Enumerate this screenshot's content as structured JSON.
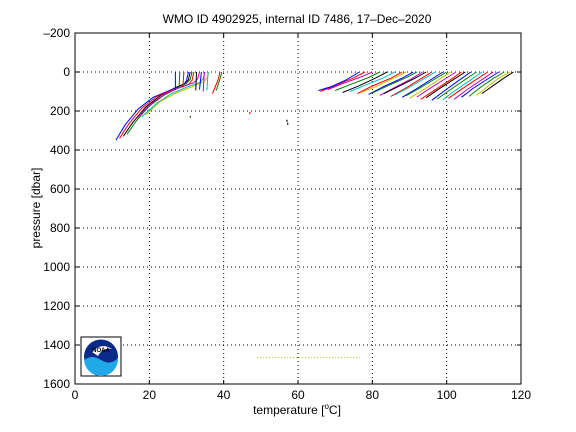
{
  "chart_data": {
    "type": "line",
    "title": "WMO ID 4902925, internal ID 7486, 17–Dec–2020",
    "xlabel_prefix": "temperature [",
    "xlabel_degree": "o",
    "xlabel_suffix": "C]",
    "ylabel": "pressure [dbar]",
    "xlim": [
      0,
      120
    ],
    "ylim": [
      -200,
      1600
    ],
    "y_reversed": true,
    "grid": true,
    "grid_style": "dotted",
    "x_ticks": [
      {
        "value": 0,
        "label": "0"
      },
      {
        "value": 20,
        "label": "20"
      },
      {
        "value": 40,
        "label": "40"
      },
      {
        "value": 60,
        "label": "60"
      },
      {
        "value": 80,
        "label": "80"
      },
      {
        "value": 100,
        "label": "100"
      },
      {
        "value": 120,
        "label": "120"
      }
    ],
    "y_ticks": [
      {
        "value": -200,
        "label": "–200"
      },
      {
        "value": 0,
        "label": "0"
      },
      {
        "value": 200,
        "label": "200"
      },
      {
        "value": 400,
        "label": "400"
      },
      {
        "value": 600,
        "label": "600"
      },
      {
        "value": 800,
        "label": "800"
      },
      {
        "value": 1000,
        "label": "1000"
      },
      {
        "value": 1200,
        "label": "1200"
      },
      {
        "value": 1400,
        "label": "1400"
      },
      {
        "value": 1600,
        "label": "1600"
      }
    ],
    "colors": [
      "#0000ff",
      "#008000",
      "#ff0000",
      "#00bfbf",
      "#bf00bf",
      "#bfbf00",
      "#000000"
    ],
    "series": [
      {
        "color": "#000000",
        "x": [
          13.0,
          15.5,
          19.0,
          23.0,
          27.0,
          29.5,
          30.5,
          31.0
        ],
        "y": [
          330,
          260,
          180,
          120,
          80,
          60,
          40,
          0
        ]
      },
      {
        "color": "#0000ff",
        "x": [
          11.0,
          13.5,
          17.0,
          21.0,
          26.0,
          29.0,
          30.0,
          30.5
        ],
        "y": [
          350,
          270,
          190,
          130,
          90,
          70,
          45,
          0
        ]
      },
      {
        "color": "#ff0000",
        "x": [
          12.0,
          14.5,
          18.0,
          22.0,
          27.0,
          30.5,
          31.5,
          32.0
        ],
        "y": [
          340,
          265,
          185,
          125,
          85,
          65,
          42,
          0
        ]
      },
      {
        "color": "#008000",
        "x": [
          14.0,
          16.5,
          20.0,
          24.0,
          28.0,
          30.0,
          31.0,
          31.5
        ],
        "y": [
          320,
          250,
          175,
          118,
          80,
          58,
          38,
          0
        ]
      },
      {
        "color": "#bf00bf",
        "x": [
          16.5,
          20.0,
          24.0,
          28.0,
          32.0,
          33.0,
          33.5
        ],
        "y": [
          240,
          170,
          115,
          80,
          55,
          35,
          0
        ]
      },
      {
        "color": "#00bfbf",
        "x": [
          18.0,
          22.0,
          26.0,
          30.0,
          33.5,
          34.5,
          35.0
        ],
        "y": [
          230,
          160,
          110,
          78,
          55,
          35,
          0
        ]
      },
      {
        "color": "#bfbf00",
        "x": [
          19.0,
          23.0,
          27.5,
          31.5,
          34.5,
          35.5,
          36.0
        ],
        "y": [
          220,
          150,
          105,
          75,
          52,
          33,
          0
        ]
      },
      {
        "color": "#0000ff",
        "x": [
          27.0,
          27.0
        ],
        "y": [
          90,
          0
        ]
      },
      {
        "color": "#008000",
        "x": [
          28.0,
          28.2
        ],
        "y": [
          85,
          0
        ]
      },
      {
        "color": "#ff0000",
        "x": [
          29.0,
          29.3
        ],
        "y": [
          80,
          0
        ]
      },
      {
        "color": "#000000",
        "x": [
          32.5,
          32.7
        ],
        "y": [
          95,
          0
        ]
      },
      {
        "color": "#bf00bf",
        "x": [
          34.5,
          34.8
        ],
        "y": [
          100,
          0
        ]
      },
      {
        "color": "#00bfbf",
        "x": [
          35.5,
          35.8
        ],
        "y": [
          95,
          0
        ]
      },
      {
        "color": "#ff0000",
        "x": [
          37.0,
          38.5,
          39.0
        ],
        "y": [
          110,
          40,
          0
        ]
      },
      {
        "color": "#008000",
        "x": [
          38.0,
          39.0,
          39.5
        ],
        "y": [
          95,
          35,
          0
        ]
      },
      {
        "color": "#0000ff",
        "x": [
          33.5,
          34.0
        ],
        "y": [
          90,
          0
        ]
      },
      {
        "color": "#ff0000",
        "x": [
          66.0,
          70.0,
          75.0,
          78.0
        ],
        "y": [
          100,
          70,
          30,
          0
        ]
      },
      {
        "color": "#0000ff",
        "x": [
          65.5,
          69.0,
          73.0,
          76.5
        ],
        "y": [
          95,
          75,
          40,
          0
        ]
      },
      {
        "color": "#bf00bf",
        "x": [
          68.0,
          72.0,
          77.0,
          80.0
        ],
        "y": [
          90,
          60,
          25,
          0
        ]
      },
      {
        "color": "#008000",
        "x": [
          70.0,
          74.0,
          79.0,
          82.0
        ],
        "y": [
          95,
          65,
          28,
          0
        ]
      },
      {
        "color": "#000000",
        "x": [
          72.0,
          76.5,
          81.0,
          84.0
        ],
        "y": [
          105,
          70,
          30,
          0
        ]
      },
      {
        "color": "#00bfbf",
        "x": [
          74.0,
          78.0,
          83.0,
          86.0
        ],
        "y": [
          100,
          68,
          30,
          0
        ]
      },
      {
        "color": "#ff0000",
        "x": [
          76.0,
          80.0,
          85.0,
          88.0
        ],
        "y": [
          110,
          72,
          32,
          0
        ]
      },
      {
        "color": "#bfbf00",
        "x": [
          77.0,
          81.5,
          86.0,
          89.0
        ],
        "y": [
          105,
          70,
          30,
          0
        ]
      },
      {
        "color": "#0000ff",
        "x": [
          79.0,
          83.0,
          88.0,
          91.0
        ],
        "y": [
          115,
          75,
          32,
          0
        ]
      },
      {
        "color": "#008000",
        "x": [
          80.0,
          84.0,
          89.0,
          92.0
        ],
        "y": [
          108,
          72,
          30,
          0
        ]
      },
      {
        "color": "#bf00bf",
        "x": [
          82.0,
          86.0,
          90.5,
          93.5
        ],
        "y": [
          120,
          80,
          35,
          0
        ]
      },
      {
        "color": "#000000",
        "x": [
          83.0,
          87.0,
          91.5,
          94.5
        ],
        "y": [
          112,
          75,
          32,
          0
        ]
      },
      {
        "color": "#ff0000",
        "x": [
          85.0,
          89.0,
          93.0,
          96.0
        ],
        "y": [
          125,
          82,
          35,
          0
        ]
      },
      {
        "color": "#00bfbf",
        "x": [
          86.0,
          90.0,
          94.0,
          97.0
        ],
        "y": [
          118,
          78,
          33,
          0
        ]
      },
      {
        "color": "#0000ff",
        "x": [
          88.0,
          92.0,
          96.0,
          99.0
        ],
        "y": [
          130,
          85,
          36,
          0
        ]
      },
      {
        "color": "#008000",
        "x": [
          89.0,
          93.0,
          97.0,
          100.0
        ],
        "y": [
          122,
          80,
          34,
          0
        ]
      },
      {
        "color": "#bfbf00",
        "x": [
          90.0,
          94.0,
          98.0,
          101.0
        ],
        "y": [
          135,
          88,
          38,
          0
        ]
      },
      {
        "color": "#bf00bf",
        "x": [
          92.0,
          95.5,
          99.5,
          102.5
        ],
        "y": [
          128,
          84,
          36,
          0
        ]
      },
      {
        "color": "#ff0000",
        "x": [
          93.0,
          97.0,
          101.0,
          104.0
        ],
        "y": [
          140,
          90,
          40,
          0
        ]
      },
      {
        "color": "#000000",
        "x": [
          94.5,
          98.0,
          102.0,
          105.0
        ],
        "y": [
          132,
          86,
          37,
          0
        ]
      },
      {
        "color": "#0000ff",
        "x": [
          96.0,
          99.5,
          103.5,
          106.5
        ],
        "y": [
          145,
          95,
          40,
          0
        ]
      },
      {
        "color": "#008000",
        "x": [
          97.5,
          101.0,
          105.0,
          108.0
        ],
        "y": [
          138,
          90,
          38,
          0
        ]
      },
      {
        "color": "#00bfbf",
        "x": [
          99.0,
          102.5,
          106.5,
          109.5
        ],
        "y": [
          142,
          92,
          40,
          0
        ]
      },
      {
        "color": "#ff0000",
        "x": [
          100.5,
          104.0,
          108.0,
          111.0
        ],
        "y": [
          135,
          88,
          38,
          0
        ]
      },
      {
        "color": "#bf00bf",
        "x": [
          102.0,
          105.5,
          109.5,
          112.5
        ],
        "y": [
          140,
          90,
          39,
          0
        ]
      },
      {
        "color": "#0000ff",
        "x": [
          104.0,
          107.0,
          111.0,
          114.0
        ],
        "y": [
          130,
          85,
          36,
          0
        ]
      },
      {
        "color": "#008000",
        "x": [
          106.0,
          109.0,
          112.5,
          115.5
        ],
        "y": [
          125,
          80,
          34,
          0
        ]
      },
      {
        "color": "#bfbf00",
        "x": [
          108.0,
          111.0,
          114.0,
          117.0
        ],
        "y": [
          120,
          75,
          32,
          0
        ]
      },
      {
        "color": "#000000",
        "x": [
          109.5,
          112.5,
          115.5,
          118.0
        ],
        "y": [
          110,
          70,
          30,
          0
        ]
      }
    ],
    "stray_points": [
      {
        "color": "#000000",
        "x": 57.0,
        "y": 250
      },
      {
        "color": "#000000",
        "x": 57.2,
        "y": 265
      },
      {
        "color": "#ff0000",
        "x": 47.0,
        "y": 210
      },
      {
        "color": "#008000",
        "x": 31.0,
        "y": 230
      }
    ],
    "bottom_dotted_line": {
      "color": "#bfbf00",
      "x": [
        49.0,
        77.0
      ],
      "y": 1465
    },
    "logo_text": "NOAA"
  }
}
